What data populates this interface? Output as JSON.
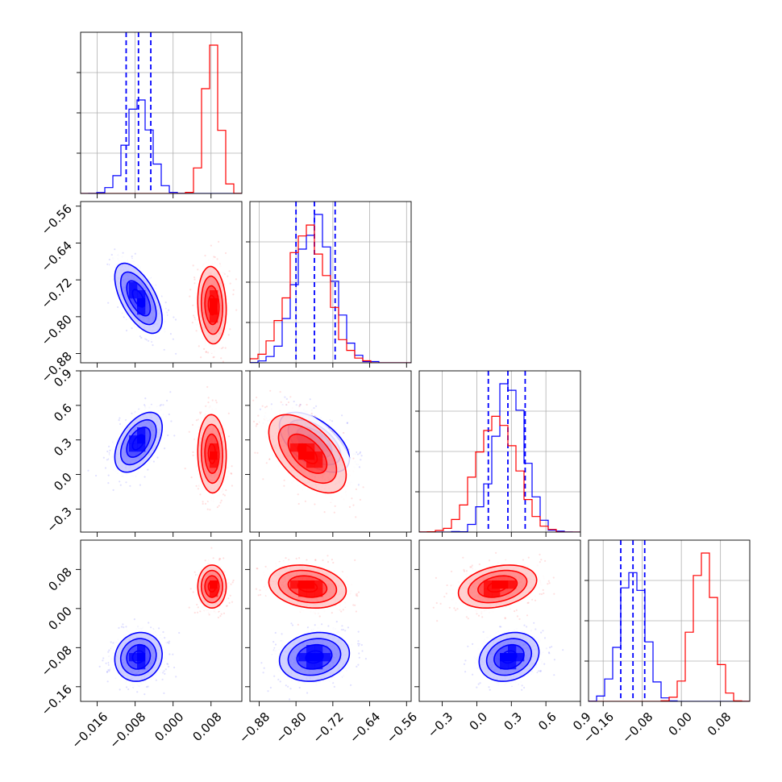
{
  "chart_data": {
    "type": "corner",
    "parameters": 4,
    "colors": {
      "blue": "#0000ff",
      "red": "#ff0000"
    },
    "grid": true,
    "ticks": [
      [
        "-0.016",
        "-0.008",
        "0.000",
        "0.008"
      ],
      [
        "-0.88",
        "-0.80",
        "-0.72",
        "-0.64",
        "-0.56"
      ],
      [
        "-0.3",
        "0.0",
        "0.3",
        "0.6",
        "0.9"
      ],
      [
        "-0.16",
        "-0.08",
        "0.00",
        "0.08"
      ]
    ],
    "tick_values": [
      [
        -0.016,
        -0.008,
        0.0,
        0.008
      ],
      [
        -0.88,
        -0.8,
        -0.72,
        -0.64,
        -0.56
      ],
      [
        -0.3,
        0.0,
        0.3,
        0.6,
        0.9
      ],
      [
        -0.16,
        -0.08,
        0.0,
        0.08
      ]
    ],
    "ranges": [
      [
        -0.0195,
        0.0145
      ],
      [
        -0.9,
        -0.55
      ],
      [
        -0.5,
        0.9
      ],
      [
        -0.19,
        0.14
      ]
    ],
    "series": [
      {
        "color": "blue",
        "means": [
          -0.0073,
          -0.76,
          0.28,
          -0.099
        ],
        "sigmas": [
          0.0025,
          0.038,
          0.13,
          0.025
        ],
        "correlations": {
          "1-0": -0.6,
          "2-0": 0.5,
          "2-1": -0.55,
          "3-0": 0.1,
          "3-1": 0.15,
          "3-2": 0.2
        },
        "quantiles_16_50_84": [
          [
            -0.0099,
            -0.0073,
            -0.0047
          ],
          [
            -0.8,
            -0.76,
            -0.715
          ],
          [
            0.1,
            0.27,
            0.42
          ],
          [
            -0.124,
            -0.099,
            -0.075
          ]
        ]
      },
      {
        "color": "red",
        "means": [
          0.0082,
          -0.775,
          0.18,
          0.045
        ],
        "sigmas": [
          0.0015,
          0.042,
          0.17,
          0.022
        ],
        "correlations": {
          "1-0": -0.1,
          "2-0": -0.05,
          "2-1": -0.55,
          "3-0": 0.0,
          "3-1": -0.2,
          "3-2": 0.3
        }
      }
    ]
  }
}
